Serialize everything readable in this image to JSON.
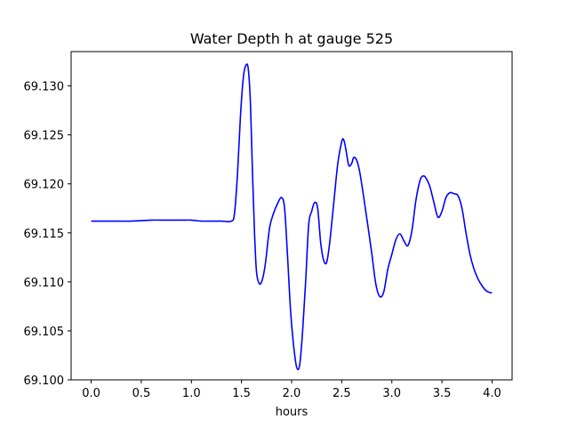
{
  "chart_data": {
    "type": "line",
    "title": "Water Depth h at gauge 525",
    "xlabel": "hours",
    "ylabel": "",
    "xlim": [
      -0.2,
      4.2
    ],
    "ylim": [
      69.1,
      69.1335
    ],
    "xticks": [
      0.0,
      0.5,
      1.0,
      1.5,
      2.0,
      2.5,
      3.0,
      3.5,
      4.0
    ],
    "xtick_labels": [
      "0.0",
      "0.5",
      "1.0",
      "1.5",
      "2.0",
      "2.5",
      "3.0",
      "3.5",
      "4.0"
    ],
    "yticks": [
      69.1,
      69.105,
      69.11,
      69.115,
      69.12,
      69.125,
      69.13
    ],
    "ytick_labels": [
      "69.100",
      "69.105",
      "69.110",
      "69.115",
      "69.120",
      "69.125",
      "69.130"
    ],
    "grid": false,
    "series": [
      {
        "color": "#0000ff",
        "x": [
          0.0,
          0.2,
          0.4,
          0.6,
          0.75,
          0.9,
          1.0,
          1.1,
          1.2,
          1.3,
          1.4,
          1.43,
          1.46,
          1.49,
          1.52,
          1.55,
          1.57,
          1.59,
          1.61,
          1.63,
          1.65,
          1.68,
          1.71,
          1.74,
          1.78,
          1.82,
          1.86,
          1.9,
          1.93,
          1.96,
          1.99,
          2.02,
          2.05,
          2.08,
          2.11,
          2.14,
          2.17,
          2.2,
          2.23,
          2.26,
          2.29,
          2.32,
          2.35,
          2.38,
          2.42,
          2.46,
          2.5,
          2.52,
          2.54,
          2.57,
          2.6,
          2.62,
          2.65,
          2.68,
          2.72,
          2.76,
          2.8,
          2.84,
          2.88,
          2.92,
          2.96,
          3.0,
          3.04,
          3.08,
          3.12,
          3.16,
          3.2,
          3.24,
          3.28,
          3.31,
          3.34,
          3.38,
          3.42,
          3.46,
          3.5,
          3.54,
          3.58,
          3.62,
          3.66,
          3.7,
          3.74,
          3.78,
          3.82,
          3.86,
          3.9,
          3.94,
          3.98,
          4.0
        ],
        "y": [
          69.1162,
          69.1162,
          69.1162,
          69.1163,
          69.1163,
          69.1163,
          69.1163,
          69.1162,
          69.1162,
          69.1162,
          69.1162,
          69.117,
          69.121,
          69.127,
          69.131,
          69.1322,
          69.1315,
          69.128,
          69.121,
          69.115,
          69.111,
          69.1098,
          69.1103,
          69.112,
          69.1155,
          69.117,
          69.118,
          69.1186,
          69.1175,
          69.1125,
          69.107,
          69.1035,
          69.1013,
          69.1015,
          69.105,
          69.11,
          69.1158,
          69.1172,
          69.1181,
          69.1175,
          69.114,
          69.1122,
          69.112,
          69.114,
          69.118,
          69.122,
          69.1243,
          69.1245,
          69.1236,
          69.1219,
          69.1221,
          69.1227,
          69.1224,
          69.1212,
          69.1186,
          69.1158,
          69.1129,
          69.1098,
          69.1085,
          69.109,
          69.1113,
          69.1128,
          69.1143,
          69.1149,
          69.1142,
          69.1137,
          69.1152,
          69.1183,
          69.1203,
          69.1208,
          69.1206,
          69.1197,
          69.1181,
          69.1166,
          69.1172,
          69.1186,
          69.1191,
          69.119,
          69.1188,
          69.1175,
          69.115,
          69.1128,
          69.1113,
          69.1103,
          69.1096,
          69.1091,
          69.1089,
          69.1089
        ]
      }
    ]
  }
}
